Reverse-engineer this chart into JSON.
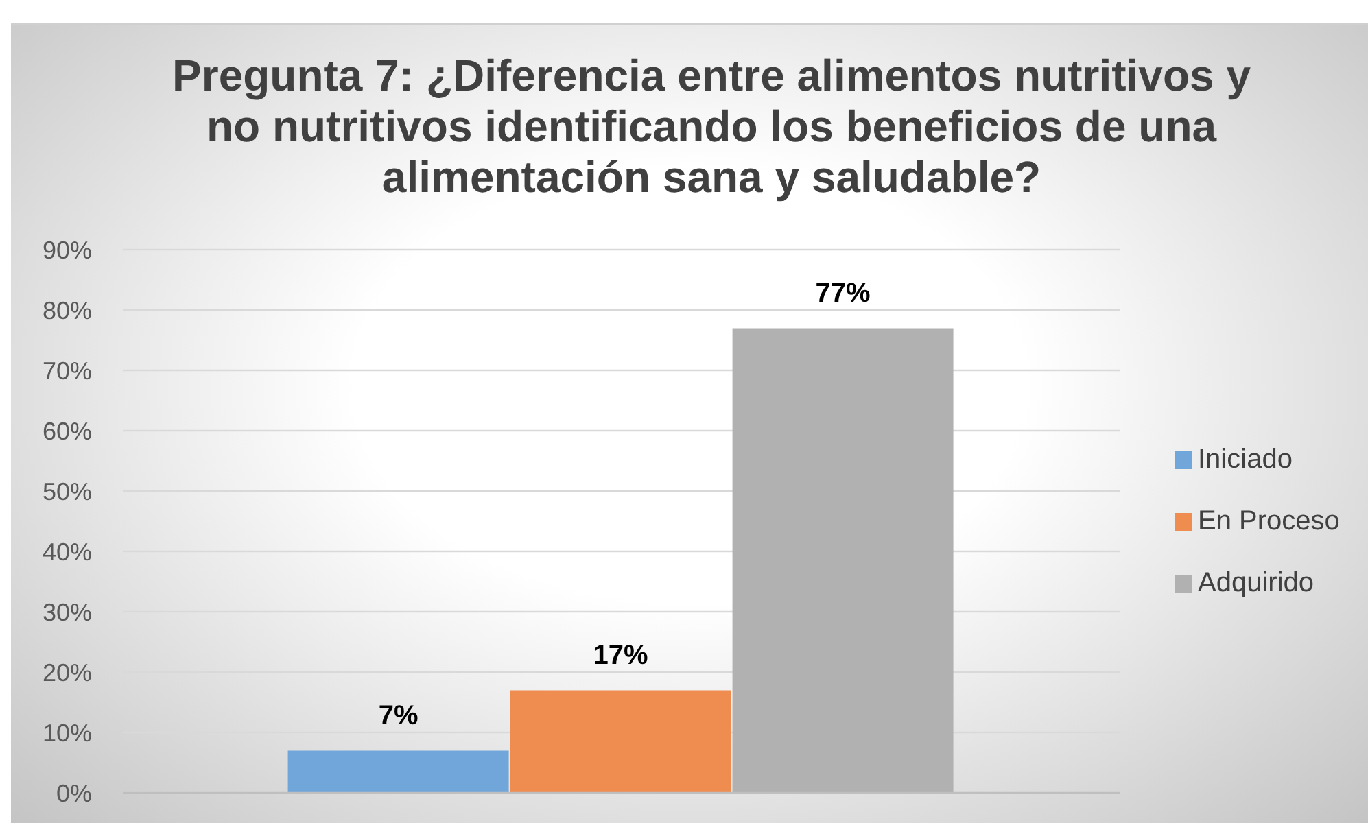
{
  "chart_data": {
    "type": "bar",
    "title": "Pregunta 7: ¿Diferencia entre alimentos nutritivos y no nutritivos identificando los beneficios de una alimentación sana y saludable?",
    "categories": [
      null
    ],
    "series": [
      {
        "name": "Iniciado",
        "color": "#70a6d9",
        "values": [
          7
        ],
        "value_labels": [
          "7%"
        ]
      },
      {
        "name": "En Proceso",
        "color": "#ef8c4f",
        "values": [
          17
        ],
        "value_labels": [
          "17%"
        ]
      },
      {
        "name": "Adquirido",
        "color": "#b1b1b1",
        "values": [
          77
        ],
        "value_labels": [
          "77%"
        ]
      }
    ],
    "ylim": [
      0,
      90
    ],
    "yticks": [
      {
        "value": 0,
        "label": "0%"
      },
      {
        "value": 10,
        "label": "10%"
      },
      {
        "value": 20,
        "label": "20%"
      },
      {
        "value": 30,
        "label": "30%"
      },
      {
        "value": 40,
        "label": "40%"
      },
      {
        "value": 50,
        "label": "50%"
      },
      {
        "value": 60,
        "label": "60%"
      },
      {
        "value": 70,
        "label": "70%"
      },
      {
        "value": 80,
        "label": "80%"
      },
      {
        "value": 90,
        "label": "90%"
      }
    ],
    "grid": "y",
    "legend": "right"
  }
}
